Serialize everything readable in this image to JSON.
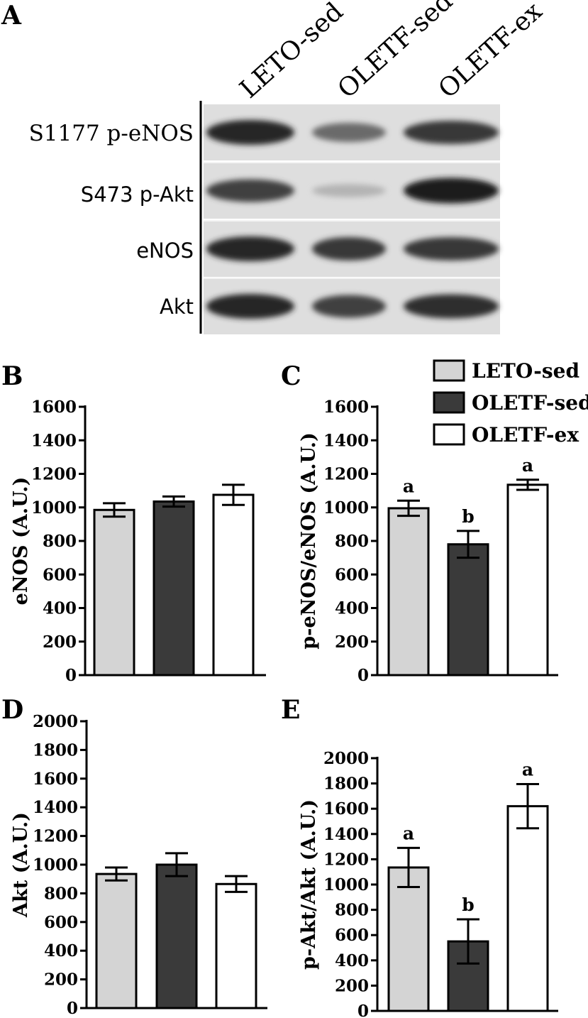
{
  "blot": {
    "panel_letter": "A",
    "lanes": [
      "LETO-sed",
      "OLETF-sed",
      "OLETF-ex"
    ],
    "rows": [
      {
        "label": "S1177 p-eNOS",
        "intensities": [
          0.95,
          0.55,
          0.85
        ]
      },
      {
        "label": "S473 p-Akt",
        "intensities": [
          0.8,
          0.12,
          1.0
        ]
      },
      {
        "label": "eNOS",
        "intensities": [
          0.95,
          0.85,
          0.85
        ]
      },
      {
        "label": "Akt",
        "intensities": [
          0.95,
          0.8,
          0.9
        ]
      }
    ]
  },
  "legend": {
    "items": [
      {
        "label": "LETO-sed",
        "color": "#d4d4d4"
      },
      {
        "label": "OLETF-sed",
        "color": "#3a3a3a"
      },
      {
        "label": "OLETF-ex",
        "color": "#ffffff"
      }
    ]
  },
  "chart_data": [
    {
      "panel": "B",
      "type": "bar",
      "categories": [
        "LETO-sed",
        "OLETF-sed",
        "OLETF-ex"
      ],
      "values": [
        985,
        1035,
        1075
      ],
      "errors": [
        40,
        30,
        60
      ],
      "letters": [
        "",
        "",
        ""
      ],
      "ylabel": "eNOS (A.U.)",
      "ylim": [
        0,
        1600
      ],
      "yticks": [
        0,
        200,
        400,
        600,
        800,
        1000,
        1200,
        1400,
        1600
      ],
      "colors": [
        "#d4d4d4",
        "#3a3a3a",
        "#ffffff"
      ]
    },
    {
      "panel": "C",
      "type": "bar",
      "categories": [
        "LETO-sed",
        "OLETF-sed",
        "OLETF-ex"
      ],
      "values": [
        995,
        780,
        1135
      ],
      "errors": [
        45,
        80,
        30
      ],
      "letters": [
        "a",
        "b",
        "a"
      ],
      "ylabel": "p-eNOS/eNOS (A.U.)",
      "ylim": [
        0,
        1600
      ],
      "yticks": [
        0,
        200,
        400,
        600,
        800,
        1000,
        1200,
        1400,
        1600
      ],
      "colors": [
        "#d4d4d4",
        "#3a3a3a",
        "#ffffff"
      ]
    },
    {
      "panel": "D",
      "type": "bar",
      "categories": [
        "LETO-sed",
        "OLETF-sed",
        "OLETF-ex"
      ],
      "values": [
        935,
        1000,
        865
      ],
      "errors": [
        45,
        80,
        55
      ],
      "letters": [
        "",
        "",
        ""
      ],
      "ylabel": "Akt (A.U.)",
      "ylim": [
        0,
        2000
      ],
      "yticks": [
        0,
        200,
        400,
        600,
        800,
        1000,
        1200,
        1400,
        1600,
        1800,
        2000
      ],
      "colors": [
        "#d4d4d4",
        "#3a3a3a",
        "#ffffff"
      ]
    },
    {
      "panel": "E",
      "type": "bar",
      "categories": [
        "LETO-sed",
        "OLETF-sed",
        "OLETF-ex"
      ],
      "values": [
        1135,
        550,
        1620
      ],
      "errors": [
        155,
        175,
        175
      ],
      "letters": [
        "a",
        "b",
        "a"
      ],
      "ylabel": "p-Akt/Akt (A.U.)",
      "ylim": [
        0,
        2000
      ],
      "yticks": [
        0,
        200,
        400,
        600,
        800,
        1000,
        1200,
        1400,
        1600,
        1800,
        2000
      ],
      "colors": [
        "#d4d4d4",
        "#3a3a3a",
        "#ffffff"
      ]
    }
  ]
}
